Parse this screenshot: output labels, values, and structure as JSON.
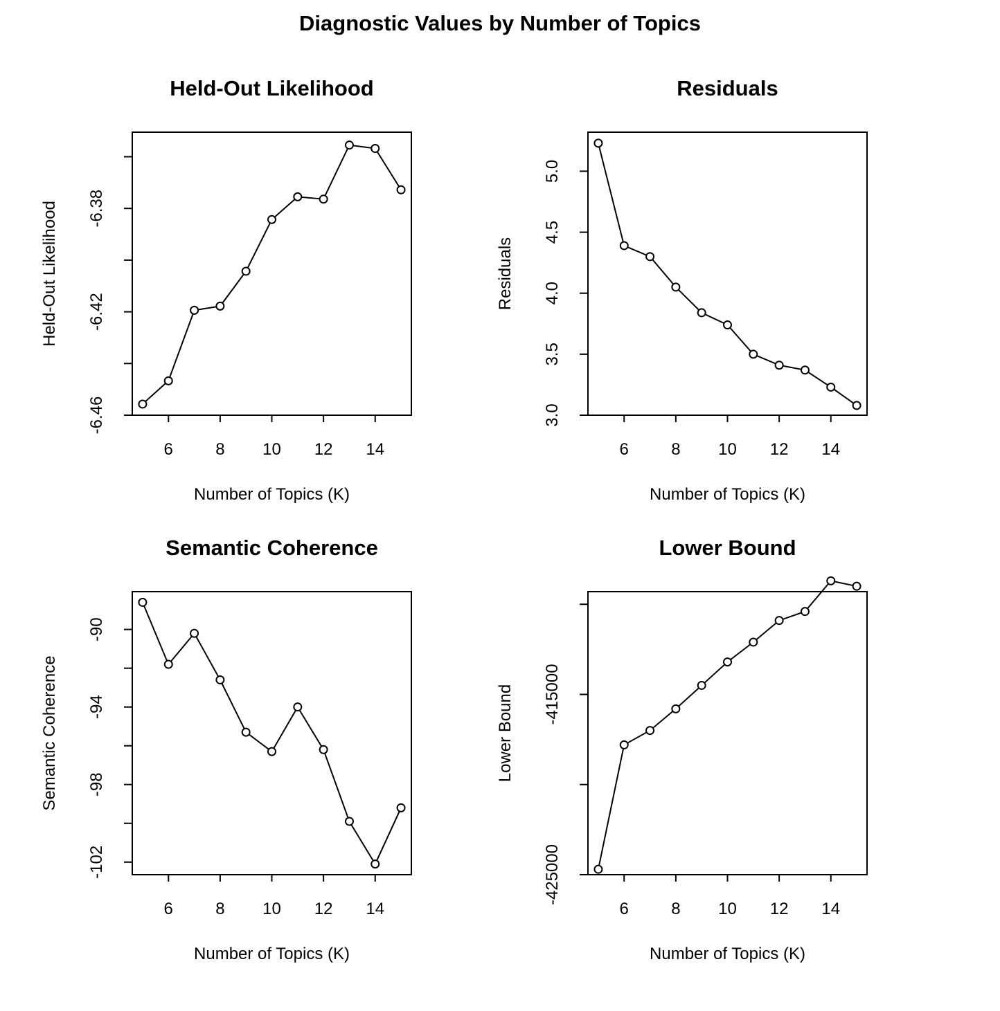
{
  "title": "Diagnostic Values by Number of Topics",
  "chart_data": [
    {
      "type": "line",
      "title": "Held-Out Likelihood",
      "xlabel": "Number of Topics (K)",
      "ylabel": "Held-Out Likelihood",
      "x": [
        5,
        6,
        7,
        8,
        9,
        10,
        11,
        12,
        13,
        14,
        15
      ],
      "y": [
        -6.4557,
        -6.4467,
        -6.4194,
        -6.4178,
        -6.4043,
        -6.3843,
        -6.3755,
        -6.3764,
        -6.3555,
        -6.3568,
        -6.3728
      ],
      "xlim": [
        4.6,
        15.4
      ],
      "ylim": [
        -6.46,
        -6.3505
      ],
      "xticks": [
        6,
        8,
        10,
        12,
        14
      ],
      "xtick_labels": [
        "6",
        "8",
        "10",
        "12",
        "14"
      ],
      "yticks": [
        -6.46,
        -6.44,
        -6.42,
        -6.4,
        -6.38,
        -6.36
      ],
      "ytick_labels": [
        "-6.46",
        "",
        "-6.42",
        "",
        "-6.38",
        ""
      ],
      "grid": false
    },
    {
      "type": "line",
      "title": "Residuals",
      "xlabel": "Number of Topics (K)",
      "ylabel": "Residuals",
      "x": [
        5,
        6,
        7,
        8,
        9,
        10,
        11,
        12,
        13,
        14,
        15
      ],
      "y": [
        5.23,
        4.39,
        4.3,
        4.05,
        3.84,
        3.74,
        3.5,
        3.41,
        3.37,
        3.23,
        3.08
      ],
      "xlim": [
        4.6,
        15.4
      ],
      "ylim": [
        3.0,
        5.32
      ],
      "xticks": [
        6,
        8,
        10,
        12,
        14
      ],
      "xtick_labels": [
        "6",
        "8",
        "10",
        "12",
        "14"
      ],
      "yticks": [
        3.0,
        3.5,
        4.0,
        4.5,
        5.0
      ],
      "ytick_labels": [
        "3.0",
        "3.5",
        "4.0",
        "4.5",
        "5.0"
      ],
      "grid": false
    },
    {
      "type": "line",
      "title": "Semantic Coherence",
      "xlabel": "Number of Topics (K)",
      "ylabel": "Semantic Coherence",
      "x": [
        5,
        6,
        7,
        8,
        9,
        10,
        11,
        12,
        13,
        14,
        15
      ],
      "y": [
        -88.6,
        -91.8,
        -90.2,
        -92.6,
        -95.3,
        -96.3,
        -94.0,
        -96.2,
        -99.9,
        -102.1,
        -99.2
      ],
      "xlim": [
        4.6,
        15.4
      ],
      "ylim": [
        -102.65,
        -88.05
      ],
      "xticks": [
        6,
        8,
        10,
        12,
        14
      ],
      "xtick_labels": [
        "6",
        "8",
        "10",
        "12",
        "14"
      ],
      "yticks": [
        -102,
        -100,
        -98,
        -96,
        -94,
        -92,
        -90
      ],
      "ytick_labels": [
        "-102",
        "",
        "-98",
        "",
        "-94",
        "",
        "-90"
      ],
      "grid": false
    },
    {
      "type": "line",
      "title": "Lower Bound",
      "xlabel": "Number of Topics (K)",
      "ylabel": "Lower Bound",
      "x": [
        5,
        6,
        7,
        8,
        9,
        10,
        11,
        12,
        13,
        14,
        15
      ],
      "y": [
        -424700,
        -417800,
        -417000,
        -415800,
        -414500,
        -413200,
        -412100,
        -410900,
        -410400,
        -408700,
        -409000
      ],
      "xlim": [
        4.6,
        15.4
      ],
      "ylim": [
        -425000,
        -409300
      ],
      "xticks": [
        6,
        8,
        10,
        12,
        14
      ],
      "xtick_labels": [
        "6",
        "8",
        "10",
        "12",
        "14"
      ],
      "yticks": [
        -425000,
        -420000,
        -415000,
        -410000
      ],
      "ytick_labels": [
        "-425000",
        "",
        "-415000",
        ""
      ],
      "grid": false
    }
  ]
}
